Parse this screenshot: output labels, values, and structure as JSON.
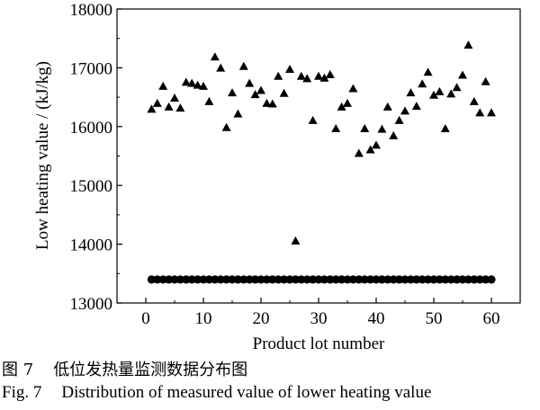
{
  "chart_data": {
    "type": "scatter",
    "xlabel": "Product lot number",
    "ylabel": "Low heating value / (kJ/kg)",
    "xlim": [
      -5,
      65
    ],
    "ylim": [
      13000,
      18000
    ],
    "xticks": [
      0,
      10,
      20,
      30,
      40,
      50,
      60
    ],
    "yticks": [
      13000,
      14000,
      15000,
      16000,
      17000,
      18000
    ],
    "grid": false,
    "legend": "none",
    "series": [
      {
        "marker": "triangle",
        "color": "#000000",
        "x": [
          1,
          2,
          3,
          4,
          5,
          6,
          7,
          8,
          9,
          10,
          11,
          12,
          13,
          14,
          15,
          16,
          17,
          18,
          19,
          20,
          21,
          22,
          23,
          24,
          25,
          26,
          27,
          28,
          29,
          30,
          31,
          32,
          33,
          34,
          35,
          36,
          37,
          38,
          39,
          40,
          41,
          42,
          43,
          44,
          45,
          46,
          47,
          48,
          49,
          50,
          51,
          52,
          53,
          54,
          55,
          56,
          57,
          58,
          59,
          60
        ],
        "y": [
          16290,
          16390,
          16680,
          16330,
          16480,
          16310,
          16750,
          16730,
          16700,
          16680,
          16420,
          17180,
          16990,
          15980,
          16570,
          16210,
          17020,
          16730,
          16540,
          16610,
          16390,
          16380,
          16850,
          16560,
          16970,
          14050,
          16850,
          16810,
          16100,
          16850,
          16820,
          16880,
          15960,
          16330,
          16390,
          16640,
          15540,
          15960,
          15600,
          15680,
          15950,
          16330,
          15840,
          16100,
          16260,
          16570,
          16340,
          16720,
          16920,
          16530,
          16590,
          15960,
          16550,
          16660,
          16870,
          17380,
          16420,
          16230,
          16760,
          16230
        ]
      },
      {
        "marker": "circle",
        "color": "#000000",
        "x": [
          1,
          2,
          3,
          4,
          5,
          6,
          7,
          8,
          9,
          10,
          11,
          12,
          13,
          14,
          15,
          16,
          17,
          18,
          19,
          20,
          21,
          22,
          23,
          24,
          25,
          26,
          27,
          28,
          29,
          30,
          31,
          32,
          33,
          34,
          35,
          36,
          37,
          38,
          39,
          40,
          41,
          42,
          43,
          44,
          45,
          46,
          47,
          48,
          49,
          50,
          51,
          52,
          53,
          54,
          55,
          56,
          57,
          58,
          59,
          60
        ],
        "y": [
          13400,
          13400,
          13400,
          13400,
          13400,
          13400,
          13400,
          13400,
          13400,
          13400,
          13400,
          13400,
          13400,
          13400,
          13400,
          13400,
          13400,
          13400,
          13400,
          13400,
          13400,
          13400,
          13400,
          13400,
          13400,
          13400,
          13400,
          13400,
          13400,
          13400,
          13400,
          13400,
          13400,
          13400,
          13400,
          13400,
          13400,
          13400,
          13400,
          13400,
          13400,
          13400,
          13400,
          13400,
          13400,
          13400,
          13400,
          13400,
          13400,
          13400,
          13400,
          13400,
          13400,
          13400,
          13400,
          13400,
          13400,
          13400,
          13400,
          13400
        ]
      }
    ]
  },
  "caption": {
    "zh_num": "图 7",
    "zh_text": "低位发热量监测数据分布图",
    "en_num": "Fig. 7",
    "en_text": "Distribution of measured value of lower heating value"
  }
}
